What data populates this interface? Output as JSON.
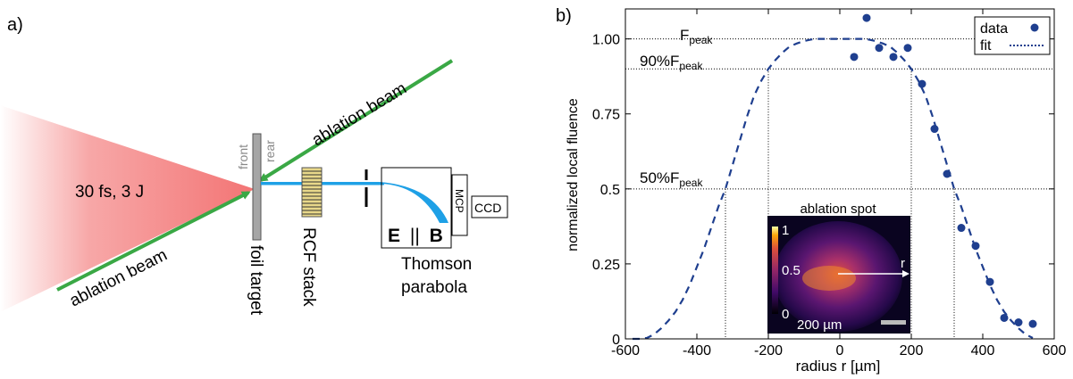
{
  "panel_a": {
    "label": "a)",
    "laser_label": "30 fs, 3 J",
    "ablation_beam_upper": "ablation beam",
    "ablation_beam_lower": "ablation beam",
    "front_label": "front",
    "rear_label": "rear",
    "foil_label": "foil target",
    "rcf_label": "RCF stack",
    "field_label_e": "E",
    "field_label_sep": "||",
    "field_label_b": "B",
    "mcp_label": "MCP",
    "ccd_label": "CCD",
    "thomson_line1": "Thomson",
    "thomson_line2": "parabola",
    "colors": {
      "laser": "#f26d6d",
      "ablation": "#3aa845",
      "ions": "#1ea0e6",
      "foil": "#a6a6a6",
      "rcf": "#e8d88a"
    }
  },
  "panel_b": {
    "label": "b)",
    "ylabel": "normalized local fluence",
    "xlabel": "radius r [µm]",
    "legend_data": "data",
    "legend_fit": "fit",
    "ann_peak_main": "F",
    "ann_peak_sub": "peak",
    "ann_90_main": "90%F",
    "ann_90_sub": "peak",
    "ann_50_main": "50%F",
    "ann_50_sub": "peak",
    "inset_title": "ablation spot",
    "inset_cbar_top": "1",
    "inset_cbar_mid": "0.5",
    "inset_cbar_bottom": "0",
    "inset_scale": "200 µm",
    "inset_r_label": "r",
    "colors": {
      "data": "#1f3f8f",
      "fit": "#1f3f8f"
    }
  },
  "chart_data": {
    "type": "scatter",
    "xlabel": "radius r [µm]",
    "ylabel": "normalized local fluence",
    "xlim": [
      -600,
      600
    ],
    "ylim": [
      0,
      1.1
    ],
    "xticks": [
      -600,
      -400,
      -200,
      0,
      200,
      400,
      600
    ],
    "yticks": [
      0,
      0.25,
      0.5,
      0.75,
      1.0
    ],
    "ytick_labels": [
      "0",
      "0.25",
      "0.5",
      "0.75",
      "1.00"
    ],
    "grid": false,
    "legend": "top-right",
    "series": [
      {
        "name": "data",
        "kind": "points",
        "x": [
          40,
          75,
          110,
          150,
          190,
          230,
          265,
          300,
          340,
          380,
          420,
          460,
          500,
          540
        ],
        "y": [
          0.94,
          1.07,
          0.97,
          0.94,
          0.97,
          0.85,
          0.7,
          0.55,
          0.37,
          0.31,
          0.19,
          0.07,
          0.055,
          0.05
        ]
      },
      {
        "name": "fit",
        "kind": "dashed-line",
        "x": [
          -580,
          -560,
          -540,
          -520,
          -500,
          -480,
          -460,
          -440,
          -420,
          -400,
          -380,
          -360,
          -340,
          -320,
          -300,
          -280,
          -260,
          -240,
          -220,
          -200,
          -180,
          -160,
          -140,
          -120,
          -100,
          -80,
          -60,
          -40,
          -20,
          0,
          20,
          40,
          60,
          80,
          100,
          120,
          140,
          160,
          180,
          200,
          220,
          240,
          260,
          280,
          300,
          320,
          340,
          360,
          380,
          400,
          420,
          440,
          460,
          480,
          500,
          520,
          540
        ],
        "y": [
          0.0,
          0.0,
          0.003,
          0.015,
          0.035,
          0.06,
          0.09,
          0.13,
          0.18,
          0.24,
          0.3,
          0.37,
          0.44,
          0.5,
          0.58,
          0.66,
          0.74,
          0.81,
          0.86,
          0.9,
          0.93,
          0.955,
          0.975,
          0.985,
          0.993,
          0.998,
          1.0,
          1.0,
          1.0,
          1.0,
          1.0,
          1.0,
          1.0,
          0.998,
          0.993,
          0.985,
          0.975,
          0.955,
          0.93,
          0.9,
          0.86,
          0.81,
          0.74,
          0.66,
          0.58,
          0.5,
          0.44,
          0.37,
          0.3,
          0.24,
          0.18,
          0.13,
          0.09,
          0.06,
          0.035,
          0.015,
          0.003
        ]
      }
    ],
    "annotations": [
      {
        "text": "Fpeak",
        "y": 1.0
      },
      {
        "text": "90%Fpeak",
        "y": 0.9,
        "x": [
          -200,
          200
        ]
      },
      {
        "text": "50%Fpeak",
        "y": 0.5,
        "x": [
          -320,
          320
        ]
      }
    ]
  }
}
